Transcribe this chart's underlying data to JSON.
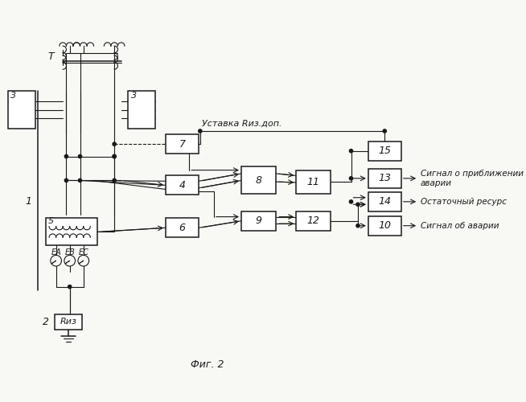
{
  "bg_color": "#f8f8f5",
  "line_color": "#1a1a1a",
  "text_color": "#1a1a1a",
  "title": "Фиг. 2",
  "label_T": "T",
  "label_1": "1",
  "label_2": "2",
  "label_3": "3",
  "label_4": "4",
  "label_5": "5",
  "label_6": "6",
  "label_7": "7",
  "label_8": "8",
  "label_9": "9",
  "label_10": "10",
  "label_11": "11",
  "label_12": "12",
  "label_13": "13",
  "label_14": "14",
  "label_15": "15",
  "label_Riz": "Rиз",
  "label_EA": "EА",
  "label_EB": "EВ",
  "label_EC": "EС",
  "label_ustavka": "Уставка Rиз.доп.",
  "label_signal1": "Сигнал о приближении\nаварии",
  "label_signal2": "Остаточный ресурс",
  "label_signal3": "Сигнал об аварии"
}
